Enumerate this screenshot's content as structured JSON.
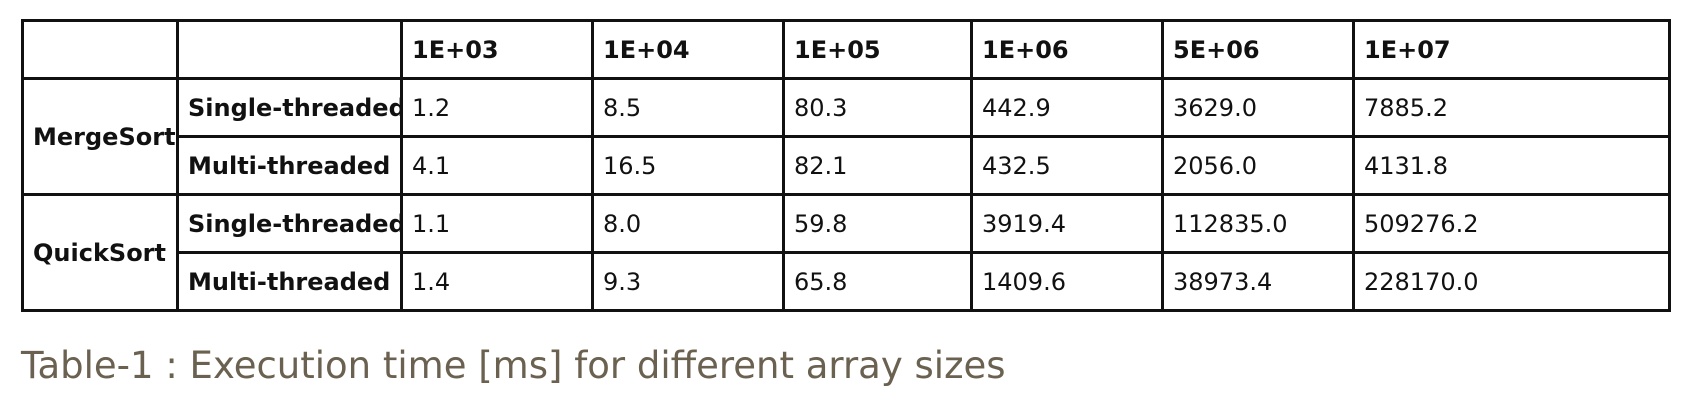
{
  "table": {
    "columns": [
      "1E+03",
      "1E+04",
      "1E+05",
      "1E+06",
      "5E+06",
      "1E+07"
    ],
    "groups": [
      {
        "algorithm": "MergeSort",
        "rows": [
          {
            "mode": "Single-threaded",
            "values": [
              "1.2",
              "8.5",
              "80.3",
              "442.9",
              "3629.0",
              "7885.2"
            ]
          },
          {
            "mode": "Multi-threaded",
            "values": [
              "4.1",
              "16.5",
              "82.1",
              "432.5",
              "2056.0",
              "4131.8"
            ]
          }
        ]
      },
      {
        "algorithm": "QuickSort",
        "rows": [
          {
            "mode": "Single-threaded",
            "values": [
              "1.1",
              "8.0",
              "59.8",
              "3919.4",
              "112835.0",
              "509276.2"
            ]
          },
          {
            "mode": "Multi-threaded",
            "values": [
              "1.4",
              "9.3",
              "65.8",
              "1409.6",
              "38973.4",
              "228170.0"
            ]
          }
        ]
      }
    ]
  },
  "caption": "Table-1 : Execution time [ms] for different array sizes"
}
